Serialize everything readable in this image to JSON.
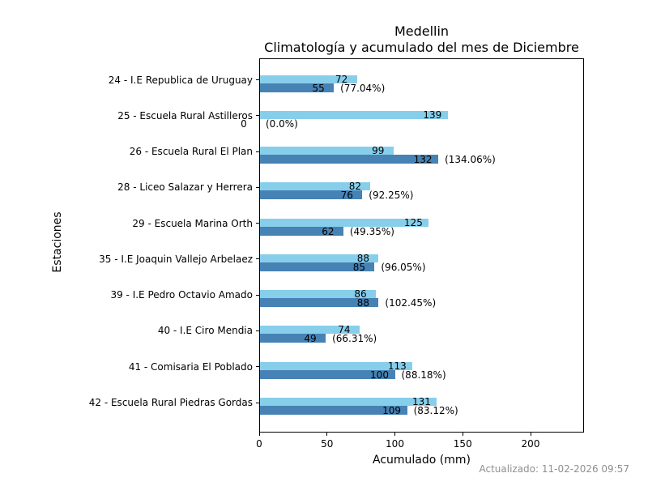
{
  "title": {
    "line1": "Medellin",
    "line2": "Climatología y acumulado del mes de Diciembre"
  },
  "x_axis": {
    "label": "Acumulado (mm)"
  },
  "y_axis": {
    "label": "Estaciones"
  },
  "footer": {
    "text": "Actualizado: 11-02-2026 09:57"
  },
  "colors": {
    "climatologia_bar": "#87CEEB",
    "acumulado_bar": "#4682B4",
    "footer_text": "#8f8f8f",
    "axis": "#000000",
    "background": "#ffffff"
  },
  "chart_data": {
    "type": "bar",
    "orientation": "horizontal",
    "title": "Medellin\nClimatología y acumulado del mes de Diciembre",
    "xlabel": "Acumulado (mm)",
    "ylabel": "Estaciones",
    "xlim": [
      0,
      239.4
    ],
    "xticks": [
      0,
      50,
      100,
      150,
      200
    ],
    "grid": false,
    "legend": "none",
    "series": [
      {
        "name": "Climatología",
        "color": "#87CEEB"
      },
      {
        "name": "Acumulado",
        "color": "#4682B4"
      }
    ],
    "stations": [
      {
        "label": "24 - I.E Republica de Uruguay",
        "climatologia": 72,
        "acumulado": 55,
        "pct": "(77.04%)"
      },
      {
        "label": "25 - Escuela Rural Astilleros",
        "climatologia": 139,
        "acumulado": 0,
        "pct": "(0.0%)"
      },
      {
        "label": "26 - Escuela Rural El Plan",
        "climatologia": 99,
        "acumulado": 132,
        "pct": "(134.06%)"
      },
      {
        "label": "28 - Liceo Salazar y Herrera",
        "climatologia": 82,
        "acumulado": 76,
        "pct": "(92.25%)"
      },
      {
        "label": "29 - Escuela Marina Orth",
        "climatologia": 125,
        "acumulado": 62,
        "pct": "(49.35%)"
      },
      {
        "label": "35 - I.E Joaquin Vallejo Arbelaez",
        "climatologia": 88,
        "acumulado": 85,
        "pct": "(96.05%)"
      },
      {
        "label": "39 - I.E Pedro Octavio Amado",
        "climatologia": 86,
        "acumulado": 88,
        "pct": "(102.45%)"
      },
      {
        "label": "40 - I.E Ciro Mendia",
        "climatologia": 74,
        "acumulado": 49,
        "pct": "(66.31%)"
      },
      {
        "label": "41 - Comisaria El Poblado",
        "climatologia": 113,
        "acumulado": 100,
        "pct": "(88.18%)"
      },
      {
        "label": "42 - Escuela Rural Piedras Gordas",
        "climatologia": 131,
        "acumulado": 109,
        "pct": "(83.12%)"
      }
    ]
  }
}
